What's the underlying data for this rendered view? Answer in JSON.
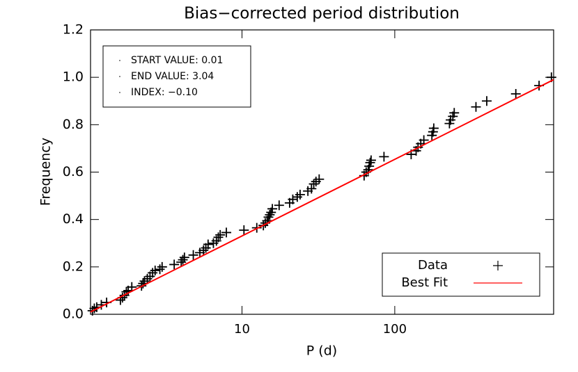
{
  "chart_data": {
    "type": "scatter",
    "title": "Bias−corrected period distribution",
    "xlabel": "P (d)",
    "ylabel": "Frequency",
    "xscale": "log",
    "xlim": [
      1.02,
      1096
    ],
    "ylim": [
      0,
      1.2
    ],
    "xticks": [
      10,
      100
    ],
    "yticks": [
      {
        "value": 0,
        "label": "0.0"
      },
      0.2,
      0.4,
      0.6,
      0.8,
      {
        "value": 1,
        "label": "1.0"
      },
      1.2
    ],
    "annotations": [
      "START VALUE: 0.01",
      "END VALUE: 3.04",
      "INDEX: −0.10"
    ],
    "legend": "lower right",
    "series": [
      {
        "name": "Data",
        "marker": "+",
        "color": "#000000",
        "x": [
          1.05,
          1.08,
          1.12,
          1.2,
          1.3,
          1.6,
          1.65,
          1.7,
          1.75,
          1.8,
          1.9,
          2.2,
          2.25,
          2.3,
          2.4,
          2.5,
          2.6,
          2.7,
          2.9,
          3.0,
          3.6,
          4.0,
          4.1,
          4.2,
          4.8,
          5.3,
          5.6,
          5.8,
          6.0,
          6.5,
          6.8,
          7.0,
          7.2,
          7.9,
          10.3,
          12.5,
          13.8,
          14.2,
          14.6,
          14.9,
          15.2,
          15.5,
          15.8,
          17.5,
          20.5,
          21.5,
          23,
          24,
          27,
          28.5,
          29.5,
          30.5,
          32,
          63,
          65,
          67,
          68,
          69,
          70,
          85,
          128,
          138,
          142,
          148,
          155,
          175,
          178,
          180,
          228,
          232,
          240,
          245,
          340,
          400,
          620,
          880,
          1060
        ],
        "values": [
          0.015,
          0.025,
          0.03,
          0.04,
          0.05,
          0.06,
          0.07,
          0.08,
          0.095,
          0.1,
          0.115,
          0.12,
          0.13,
          0.14,
          0.15,
          0.16,
          0.175,
          0.185,
          0.19,
          0.2,
          0.21,
          0.22,
          0.23,
          0.24,
          0.25,
          0.26,
          0.27,
          0.28,
          0.295,
          0.3,
          0.31,
          0.325,
          0.335,
          0.345,
          0.355,
          0.365,
          0.375,
          0.385,
          0.395,
          0.41,
          0.42,
          0.43,
          0.445,
          0.46,
          0.47,
          0.485,
          0.495,
          0.505,
          0.52,
          0.53,
          0.55,
          0.56,
          0.57,
          0.585,
          0.6,
          0.61,
          0.625,
          0.64,
          0.65,
          0.665,
          0.675,
          0.69,
          0.705,
          0.72,
          0.735,
          0.755,
          0.77,
          0.785,
          0.805,
          0.82,
          0.835,
          0.85,
          0.875,
          0.9,
          0.93,
          0.965,
          1.0
        ]
      },
      {
        "name": "Best Fit",
        "marker": "line",
        "color": "#ff0000",
        "x": [
          1.02,
          1096
        ],
        "values": [
          0.01,
          0.99
        ]
      }
    ]
  }
}
